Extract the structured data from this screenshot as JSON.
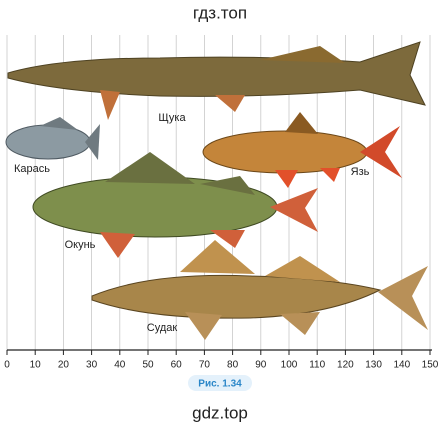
{
  "header": {
    "watermark": "гдз.топ"
  },
  "fish": [
    {
      "label": "Щука"
    },
    {
      "label": "Карась"
    },
    {
      "label": "Язь"
    },
    {
      "label": "Окунь"
    },
    {
      "label": "Судак"
    }
  ],
  "ruler": {
    "lim": [
      0,
      150
    ],
    "ticks": [
      0,
      10,
      20,
      30,
      40,
      50,
      60,
      70,
      80,
      90,
      100,
      110,
      120,
      130,
      140,
      150
    ]
  },
  "caption": "Рис. 1.34",
  "footer": {
    "watermark": "gdz.top"
  }
}
